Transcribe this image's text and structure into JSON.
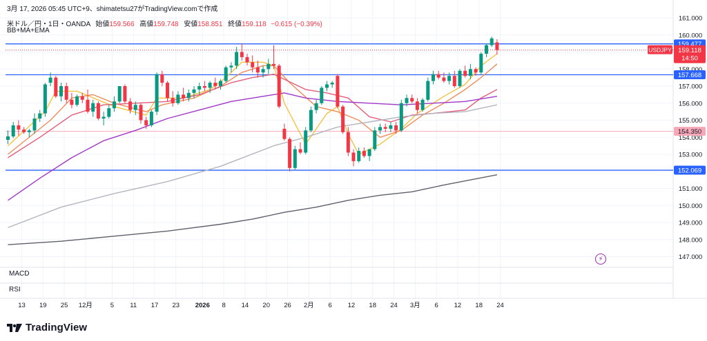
{
  "header": {
    "top_line": "3月 17, 2026 05:45 UTC+9、shimatetsu27がTradingView.comで作成",
    "symbol_line": "米ドル／円・1日・OANDA",
    "open_label": "始値",
    "open_value": "159.566",
    "high_label": "高値",
    "high_value": "159.748",
    "low_label": "安値",
    "low_value": "158.851",
    "close_label": "終値",
    "close_value": "159.118",
    "change": "−0.615 (−0.39%)",
    "indicators": "BB+MA+EMA"
  },
  "panes": {
    "macd": "MACD",
    "rsi": "RSI"
  },
  "brand": "TradingView",
  "price_badge": {
    "symbol": "USDJPY",
    "price": "159.118",
    "countdown": "14:50"
  },
  "colors": {
    "up": "#089981",
    "down": "#f23645",
    "hline": "#2962ff",
    "pink_line": "#f7a8b8",
    "ema_short": "#f5c242",
    "ema_mid": "#ef8c59",
    "ma_mid": "#e45b78",
    "ma_long": "#a236c9",
    "ma_200": "#b2b5be",
    "ma_300": "#5d606b"
  },
  "chart_data": {
    "type": "candlestick",
    "symbol": "USDJPY",
    "timeframe": "1D",
    "y_axis": {
      "min": 146.5,
      "max": 161.5,
      "ticks": [
        161.0,
        160.0,
        159.0,
        158.0,
        157.0,
        156.0,
        155.0,
        154.0,
        153.0,
        152.0,
        151.0,
        150.0,
        149.0,
        148.0,
        147.0
      ],
      "tick_labels": [
        "161.000",
        "160.000",
        "159.000",
        "158.000",
        "157.000",
        "156.000",
        "155.000",
        "154.000",
        "153.000",
        "152.000",
        "151.000",
        "150.000",
        "149.000",
        "148.000",
        "147.000"
      ]
    },
    "x_axis": {
      "labels": [
        {
          "text": "13",
          "i": 0
        },
        {
          "text": "19",
          "i": 4
        },
        {
          "text": "25",
          "i": 8
        },
        {
          "text": "12月",
          "i": 12
        },
        {
          "text": "5",
          "i": 17
        },
        {
          "text": "11",
          "i": 21
        },
        {
          "text": "17",
          "i": 25
        },
        {
          "text": "23",
          "i": 29
        },
        {
          "text": "2026",
          "i": 34,
          "bold": true
        },
        {
          "text": "8",
          "i": 38
        },
        {
          "text": "14",
          "i": 42
        },
        {
          "text": "20",
          "i": 46
        },
        {
          "text": "26",
          "i": 50
        },
        {
          "text": "2月",
          "i": 54
        },
        {
          "text": "6",
          "i": 58
        },
        {
          "text": "12",
          "i": 62
        },
        {
          "text": "18",
          "i": 66
        },
        {
          "text": "24",
          "i": 70
        },
        {
          "text": "3月",
          "i": 74
        },
        {
          "text": "6",
          "i": 78
        },
        {
          "text": "12",
          "i": 82
        },
        {
          "text": "18",
          "i": 86
        },
        {
          "text": "24",
          "i": 90
        }
      ]
    },
    "horizontal_lines": [
      {
        "price": 159.477,
        "label": "159.477",
        "color": "#2962ff"
      },
      {
        "price": 157.668,
        "label": "157.668",
        "color": "#2962ff"
      },
      {
        "price": 154.35,
        "label": "154.350",
        "color": "#f7a8b8"
      },
      {
        "price": 152.069,
        "label": "152.069",
        "color": "#2962ff"
      }
    ],
    "candles": [
      {
        "o": 153.85,
        "h": 154.4,
        "l": 153.6,
        "c": 154.05
      },
      {
        "o": 154.05,
        "h": 154.9,
        "l": 153.95,
        "c": 154.7
      },
      {
        "o": 154.7,
        "h": 155.0,
        "l": 154.1,
        "c": 154.45
      },
      {
        "o": 154.45,
        "h": 154.6,
        "l": 154.2,
        "c": 154.3
      },
      {
        "o": 154.3,
        "h": 154.5,
        "l": 154.0,
        "c": 154.4
      },
      {
        "o": 154.4,
        "h": 155.4,
        "l": 154.2,
        "c": 155.1
      },
      {
        "o": 155.1,
        "h": 155.6,
        "l": 154.9,
        "c": 155.4
      },
      {
        "o": 155.4,
        "h": 157.2,
        "l": 155.2,
        "c": 157.1
      },
      {
        "o": 157.2,
        "h": 157.8,
        "l": 157.0,
        "c": 157.5
      },
      {
        "o": 157.5,
        "h": 157.6,
        "l": 156.3,
        "c": 156.4
      },
      {
        "o": 156.4,
        "h": 157.2,
        "l": 156.1,
        "c": 157.0
      },
      {
        "o": 157.0,
        "h": 157.2,
        "l": 156.0,
        "c": 156.2
      },
      {
        "o": 156.2,
        "h": 156.6,
        "l": 155.7,
        "c": 155.9
      },
      {
        "o": 155.9,
        "h": 156.5,
        "l": 155.8,
        "c": 156.4
      },
      {
        "o": 156.4,
        "h": 156.6,
        "l": 156.0,
        "c": 156.2
      },
      {
        "o": 156.2,
        "h": 156.8,
        "l": 155.4,
        "c": 155.5
      },
      {
        "o": 155.5,
        "h": 156.2,
        "l": 155.2,
        "c": 156.0
      },
      {
        "o": 156.0,
        "h": 156.1,
        "l": 155.0,
        "c": 155.1
      },
      {
        "o": 155.1,
        "h": 155.5,
        "l": 154.7,
        "c": 155.2
      },
      {
        "o": 155.2,
        "h": 155.9,
        "l": 155.1,
        "c": 155.7
      },
      {
        "o": 155.7,
        "h": 156.4,
        "l": 155.5,
        "c": 156.1
      },
      {
        "o": 156.1,
        "h": 157.0,
        "l": 156.0,
        "c": 157.0
      },
      {
        "o": 157.0,
        "h": 157.1,
        "l": 156.0,
        "c": 156.1
      },
      {
        "o": 156.1,
        "h": 156.3,
        "l": 155.4,
        "c": 155.6
      },
      {
        "o": 155.6,
        "h": 156.1,
        "l": 155.3,
        "c": 155.9
      },
      {
        "o": 155.9,
        "h": 156.0,
        "l": 154.8,
        "c": 155.0
      },
      {
        "o": 155.0,
        "h": 155.2,
        "l": 154.5,
        "c": 154.7
      },
      {
        "o": 154.7,
        "h": 155.6,
        "l": 154.6,
        "c": 155.5
      },
      {
        "o": 155.5,
        "h": 157.8,
        "l": 155.3,
        "c": 157.7
      },
      {
        "o": 157.7,
        "h": 157.9,
        "l": 157.0,
        "c": 157.2
      },
      {
        "o": 157.2,
        "h": 157.3,
        "l": 156.1,
        "c": 156.3
      },
      {
        "o": 156.3,
        "h": 156.7,
        "l": 155.8,
        "c": 156.0
      },
      {
        "o": 156.0,
        "h": 156.7,
        "l": 155.9,
        "c": 156.5
      },
      {
        "o": 156.5,
        "h": 156.9,
        "l": 156.1,
        "c": 156.3
      },
      {
        "o": 156.3,
        "h": 156.8,
        "l": 156.1,
        "c": 156.6
      },
      {
        "o": 156.6,
        "h": 157.0,
        "l": 156.3,
        "c": 156.8
      },
      {
        "o": 156.8,
        "h": 157.2,
        "l": 156.5,
        "c": 157.0
      },
      {
        "o": 157.0,
        "h": 157.3,
        "l": 156.7,
        "c": 156.9
      },
      {
        "o": 156.9,
        "h": 157.3,
        "l": 156.6,
        "c": 157.2
      },
      {
        "o": 157.2,
        "h": 157.5,
        "l": 156.8,
        "c": 157.0
      },
      {
        "o": 157.0,
        "h": 157.4,
        "l": 156.8,
        "c": 157.3
      },
      {
        "o": 157.3,
        "h": 158.2,
        "l": 157.2,
        "c": 158.1
      },
      {
        "o": 158.1,
        "h": 158.4,
        "l": 157.8,
        "c": 158.2
      },
      {
        "o": 158.2,
        "h": 159.3,
        "l": 158.0,
        "c": 159.0
      },
      {
        "o": 159.0,
        "h": 159.5,
        "l": 158.5,
        "c": 158.7
      },
      {
        "o": 158.7,
        "h": 158.9,
        "l": 158.2,
        "c": 158.4
      },
      {
        "o": 158.4,
        "h": 158.8,
        "l": 157.8,
        "c": 158.1
      },
      {
        "o": 158.1,
        "h": 158.5,
        "l": 157.5,
        "c": 157.8
      },
      {
        "o": 157.8,
        "h": 158.2,
        "l": 157.5,
        "c": 158.0
      },
      {
        "o": 158.0,
        "h": 158.6,
        "l": 157.7,
        "c": 158.3
      },
      {
        "o": 158.3,
        "h": 159.4,
        "l": 158.0,
        "c": 158.2
      },
      {
        "o": 158.2,
        "h": 158.3,
        "l": 155.7,
        "c": 155.8
      },
      {
        "o": 154.5,
        "h": 154.8,
        "l": 153.8,
        "c": 153.9
      },
      {
        "o": 153.9,
        "h": 154.0,
        "l": 152.0,
        "c": 152.2
      },
      {
        "o": 152.2,
        "h": 153.5,
        "l": 152.1,
        "c": 153.3
      },
      {
        "o": 153.3,
        "h": 153.7,
        "l": 153.0,
        "c": 153.1
      },
      {
        "o": 153.1,
        "h": 154.6,
        "l": 153.0,
        "c": 154.4
      },
      {
        "o": 154.4,
        "h": 155.8,
        "l": 154.3,
        "c": 155.6
      },
      {
        "o": 155.6,
        "h": 156.2,
        "l": 155.4,
        "c": 156.0
      },
      {
        "o": 156.0,
        "h": 157.0,
        "l": 155.9,
        "c": 156.9
      },
      {
        "o": 156.9,
        "h": 157.3,
        "l": 156.7,
        "c": 157.1
      },
      {
        "o": 157.1,
        "h": 157.3,
        "l": 156.9,
        "c": 157.2
      },
      {
        "o": 157.6,
        "h": 157.7,
        "l": 155.7,
        "c": 155.8
      },
      {
        "o": 155.8,
        "h": 155.9,
        "l": 154.2,
        "c": 154.3
      },
      {
        "o": 154.3,
        "h": 154.6,
        "l": 152.9,
        "c": 153.1
      },
      {
        "o": 153.1,
        "h": 153.3,
        "l": 152.3,
        "c": 152.6
      },
      {
        "o": 152.6,
        "h": 153.4,
        "l": 152.5,
        "c": 153.2
      },
      {
        "o": 153.2,
        "h": 153.4,
        "l": 152.8,
        "c": 152.9
      },
      {
        "o": 152.9,
        "h": 153.3,
        "l": 152.6,
        "c": 153.3
      },
      {
        "o": 153.3,
        "h": 154.6,
        "l": 153.2,
        "c": 154.4
      },
      {
        "o": 154.4,
        "h": 154.8,
        "l": 154.2,
        "c": 154.6
      },
      {
        "o": 154.6,
        "h": 154.8,
        "l": 154.3,
        "c": 154.5
      },
      {
        "o": 154.5,
        "h": 154.9,
        "l": 154.3,
        "c": 154.7
      },
      {
        "o": 154.7,
        "h": 154.9,
        "l": 154.2,
        "c": 154.4
      },
      {
        "o": 154.4,
        "h": 156.2,
        "l": 154.3,
        "c": 156.0
      },
      {
        "o": 156.0,
        "h": 156.5,
        "l": 155.8,
        "c": 156.3
      },
      {
        "o": 156.3,
        "h": 156.5,
        "l": 156.0,
        "c": 156.1
      },
      {
        "o": 156.1,
        "h": 156.3,
        "l": 155.4,
        "c": 155.6
      },
      {
        "o": 155.6,
        "h": 156.3,
        "l": 155.5,
        "c": 156.2
      },
      {
        "o": 156.2,
        "h": 157.5,
        "l": 156.1,
        "c": 157.3
      },
      {
        "o": 157.3,
        "h": 157.9,
        "l": 157.1,
        "c": 157.7
      },
      {
        "o": 157.7,
        "h": 157.9,
        "l": 157.4,
        "c": 157.5
      },
      {
        "o": 157.5,
        "h": 157.8,
        "l": 157.2,
        "c": 157.3
      },
      {
        "o": 157.3,
        "h": 157.8,
        "l": 157.1,
        "c": 157.6
      },
      {
        "o": 157.6,
        "h": 157.9,
        "l": 156.9,
        "c": 157.0
      },
      {
        "o": 157.0,
        "h": 158.0,
        "l": 156.9,
        "c": 157.9
      },
      {
        "o": 157.9,
        "h": 158.2,
        "l": 157.5,
        "c": 157.6
      },
      {
        "o": 157.6,
        "h": 158.3,
        "l": 157.4,
        "c": 158.0
      },
      {
        "o": 158.0,
        "h": 158.1,
        "l": 157.6,
        "c": 157.8
      },
      {
        "o": 157.8,
        "h": 159.0,
        "l": 157.7,
        "c": 158.9
      },
      {
        "o": 158.9,
        "h": 159.5,
        "l": 158.7,
        "c": 159.4
      },
      {
        "o": 159.4,
        "h": 159.9,
        "l": 159.3,
        "c": 159.8
      },
      {
        "o": 159.566,
        "h": 159.748,
        "l": 158.851,
        "c": 159.118
      }
    ],
    "moving_averages": [
      {
        "key": "ema_short",
        "points": [
          [
            0,
            153.5
          ],
          [
            7,
            155.5
          ],
          [
            9,
            156.7
          ],
          [
            13,
            156.7
          ],
          [
            20,
            155.8
          ],
          [
            26,
            155.3
          ],
          [
            28,
            156.3
          ],
          [
            33,
            156.3
          ],
          [
            38,
            156.8
          ],
          [
            41,
            157.5
          ],
          [
            44,
            158.4
          ],
          [
            48,
            158.4
          ],
          [
            50,
            158.2
          ],
          [
            52,
            156.0
          ],
          [
            56,
            153.6
          ],
          [
            60,
            155.4
          ],
          [
            62,
            155.8
          ],
          [
            64,
            154.2
          ],
          [
            66,
            153.0
          ],
          [
            70,
            153.6
          ],
          [
            74,
            154.5
          ],
          [
            77,
            155.4
          ],
          [
            82,
            156.4
          ],
          [
            86,
            157.1
          ],
          [
            89,
            158.2
          ],
          [
            92,
            158.9
          ]
        ]
      },
      {
        "key": "ema_mid",
        "points": [
          [
            0,
            153.0
          ],
          [
            8,
            155.0
          ],
          [
            12,
            156.3
          ],
          [
            16,
            156.5
          ],
          [
            20,
            156.0
          ],
          [
            26,
            155.5
          ],
          [
            29,
            155.9
          ],
          [
            35,
            156.3
          ],
          [
            40,
            157.0
          ],
          [
            44,
            157.8
          ],
          [
            48,
            158.2
          ],
          [
            50,
            158.2
          ],
          [
            53,
            157.2
          ],
          [
            58,
            155.8
          ],
          [
            62,
            155.5
          ],
          [
            66,
            155.0
          ],
          [
            70,
            154.0
          ],
          [
            74,
            154.4
          ],
          [
            78,
            155.3
          ],
          [
            82,
            156.0
          ],
          [
            86,
            156.8
          ],
          [
            89,
            157.5
          ],
          [
            92,
            158.3
          ]
        ]
      },
      {
        "key": "ma_mid",
        "points": [
          [
            0,
            152.8
          ],
          [
            6,
            154.0
          ],
          [
            12,
            155.3
          ],
          [
            18,
            155.9
          ],
          [
            24,
            156.0
          ],
          [
            30,
            156.1
          ],
          [
            36,
            156.5
          ],
          [
            42,
            157.2
          ],
          [
            46,
            157.5
          ],
          [
            50,
            157.7
          ],
          [
            52,
            157.4
          ],
          [
            56,
            156.8
          ],
          [
            60,
            156.6
          ],
          [
            64,
            156.3
          ],
          [
            68,
            155.2
          ],
          [
            72,
            154.9
          ],
          [
            76,
            155.3
          ],
          [
            80,
            155.4
          ],
          [
            86,
            155.6
          ],
          [
            89,
            156.3
          ],
          [
            92,
            156.8
          ]
        ]
      },
      {
        "key": "ma_long",
        "points": [
          [
            0,
            150.3
          ],
          [
            6,
            151.6
          ],
          [
            12,
            152.8
          ],
          [
            18,
            153.8
          ],
          [
            24,
            154.4
          ],
          [
            30,
            155.1
          ],
          [
            36,
            155.6
          ],
          [
            42,
            156.1
          ],
          [
            48,
            156.4
          ],
          [
            52,
            156.6
          ],
          [
            56,
            156.3
          ],
          [
            62,
            156.1
          ],
          [
            68,
            156.0
          ],
          [
            74,
            155.9
          ],
          [
            80,
            156.0
          ],
          [
            86,
            156.1
          ],
          [
            92,
            156.4
          ]
        ]
      },
      {
        "key": "ma_200",
        "points": [
          [
            0,
            148.7
          ],
          [
            10,
            149.9
          ],
          [
            20,
            150.7
          ],
          [
            30,
            151.4
          ],
          [
            40,
            152.3
          ],
          [
            50,
            153.5
          ],
          [
            56,
            154.0
          ],
          [
            62,
            154.6
          ],
          [
            68,
            154.9
          ],
          [
            74,
            155.2
          ],
          [
            80,
            155.4
          ],
          [
            86,
            155.5
          ],
          [
            92,
            155.9
          ]
        ]
      },
      {
        "key": "ma_300",
        "points": [
          [
            0,
            147.7
          ],
          [
            10,
            147.9
          ],
          [
            20,
            148.2
          ],
          [
            30,
            148.5
          ],
          [
            40,
            148.9
          ],
          [
            46,
            149.2
          ],
          [
            52,
            149.6
          ],
          [
            58,
            149.9
          ],
          [
            64,
            150.3
          ],
          [
            70,
            150.6
          ],
          [
            76,
            150.8
          ],
          [
            82,
            151.2
          ],
          [
            92,
            151.8
          ]
        ]
      }
    ]
  }
}
